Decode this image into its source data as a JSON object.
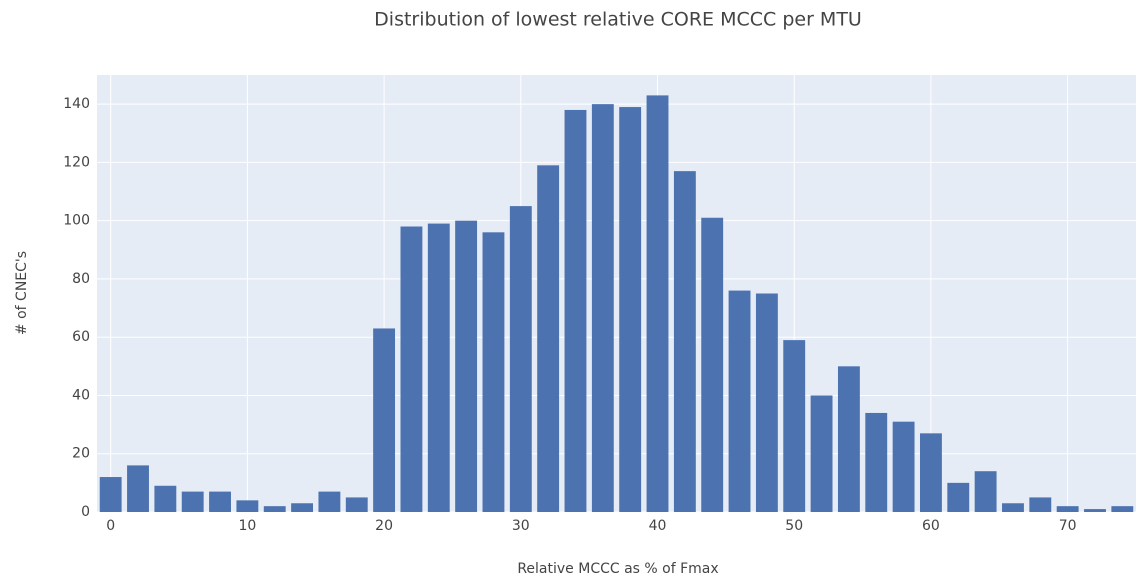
{
  "chart_data": {
    "type": "histogram",
    "title": "Distribution of lowest relative CORE MCCC per MTU",
    "x_label": "Relative MCCC as % of Fmax",
    "y_label": "# of CNEC's",
    "bins": [
      -1,
      1,
      3,
      5,
      7,
      9,
      11,
      13,
      15,
      17,
      19,
      21,
      23,
      25,
      27,
      29,
      31,
      33,
      35,
      37,
      39,
      41,
      43,
      45,
      47,
      49,
      51,
      53,
      55,
      57,
      59,
      61,
      63,
      65,
      67,
      69,
      71,
      73,
      75
    ],
    "values": [
      12,
      16,
      9,
      7,
      7,
      4,
      2,
      3,
      7,
      5,
      63,
      98,
      99,
      100,
      96,
      105,
      119,
      138,
      140,
      139,
      143,
      117,
      101,
      76,
      75,
      59,
      40,
      50,
      34,
      31,
      27,
      10,
      14,
      3,
      5,
      2,
      1,
      2
    ],
    "color": "#4c72b0",
    "xlim": [
      -1,
      75
    ],
    "xticks": [
      0,
      10,
      20,
      30,
      40,
      50,
      60,
      70
    ],
    "ylim": [
      0,
      150
    ],
    "yticks": [
      0,
      20,
      40,
      60,
      80,
      100,
      120,
      140
    ],
    "grid": true
  }
}
